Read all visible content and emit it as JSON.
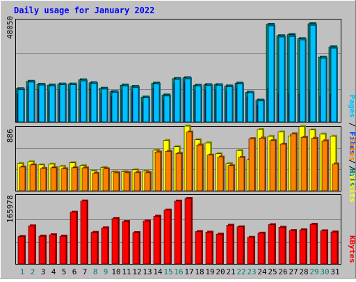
{
  "chart_data": [
    {
      "type": "bar",
      "title": "Daily usage for January 2022",
      "categories": [
        "1",
        "2",
        "3",
        "4",
        "5",
        "6",
        "7",
        "8",
        "9",
        "10",
        "11",
        "12",
        "13",
        "14",
        "15",
        "16",
        "17",
        "18",
        "19",
        "20",
        "21",
        "22",
        "23",
        "24",
        "25",
        "26",
        "27",
        "28",
        "29",
        "30",
        "31"
      ],
      "weekend_days": [
        "1",
        "2",
        "8",
        "9",
        "15",
        "16",
        "22",
        "23",
        "29",
        "30"
      ],
      "ytick_label": "48050",
      "ylim": [
        0,
        48050
      ],
      "legend": [
        "Pages",
        "Files",
        "Hits"
      ],
      "legend_colors": [
        "#00C0FF",
        "#0040FF",
        "#00806F"
      ],
      "series": [
        {
          "name": "Hits",
          "values": [
            15800,
            19300,
            17900,
            17500,
            18000,
            18000,
            20000,
            18600,
            16000,
            14400,
            17500,
            16900,
            11800,
            18400,
            12800,
            20600,
            21000,
            17400,
            17700,
            17700,
            17100,
            18400,
            14100,
            10400,
            46400,
            41000,
            41500,
            39600,
            46700,
            30800,
            35700
          ]
        },
        {
          "name": "Files",
          "values": [
            13200,
            16900,
            15400,
            14900,
            15300,
            15300,
            17700,
            16100,
            13500,
            12100,
            15100,
            14400,
            9100,
            16000,
            10400,
            18200,
            18600,
            14900,
            15200,
            15300,
            14600,
            16000,
            11900,
            8000,
            16200,
            13400,
            13700,
            13300,
            14800,
            12200,
            13100
          ]
        },
        {
          "name": "Pages",
          "values": [
            15300,
            18900,
            17500,
            17000,
            17700,
            17700,
            19500,
            18200,
            15600,
            14000,
            17000,
            16400,
            11400,
            18000,
            12300,
            20200,
            20500,
            17000,
            17300,
            17400,
            16700,
            18000,
            13800,
            10000,
            45700,
            40400,
            40700,
            39000,
            46000,
            30300,
            35100
          ]
        }
      ]
    },
    {
      "type": "bar",
      "ytick_label": "886",
      "ylim": [
        0,
        886
      ],
      "legend": [
        "Sites",
        "Visits"
      ],
      "legend_colors": [
        "#FF8000",
        "#FFFF00"
      ],
      "series": [
        {
          "name": "Visits",
          "values": [
            390,
            415,
            370,
            380,
            350,
            402,
            360,
            282,
            335,
            270,
            275,
            300,
            280,
            580,
            720,
            630,
            925,
            730,
            685,
            530,
            390,
            575,
            442,
            876,
            778,
            841,
            785,
            920,
            870,
            810,
            780
          ]
        },
        {
          "name": "Sites",
          "values": [
            340,
            370,
            320,
            330,
            315,
            330,
            328,
            250,
            315,
            258,
            260,
            260,
            260,
            555,
            565,
            535,
            840,
            655,
            510,
            482,
            360,
            478,
            745,
            754,
            718,
            667,
            814,
            765,
            750,
            714,
            383
          ]
        }
      ]
    },
    {
      "type": "bar",
      "ytick_label": "165978",
      "ylim": [
        0,
        165978
      ],
      "legend": [
        "KBytes"
      ],
      "legend_colors": [
        "#FF0000"
      ],
      "series": [
        {
          "name": "KBytes",
          "values": [
            69500,
            96500,
            70500,
            74000,
            70500,
            131200,
            159500,
            80000,
            91500,
            115000,
            107500,
            79500,
            109000,
            121000,
            136500,
            159300,
            166000,
            82000,
            80500,
            75500,
            98000,
            94000,
            67500,
            78000,
            99500,
            93000,
            84500,
            86500,
            100500,
            84000,
            81000
          ]
        }
      ]
    }
  ]
}
